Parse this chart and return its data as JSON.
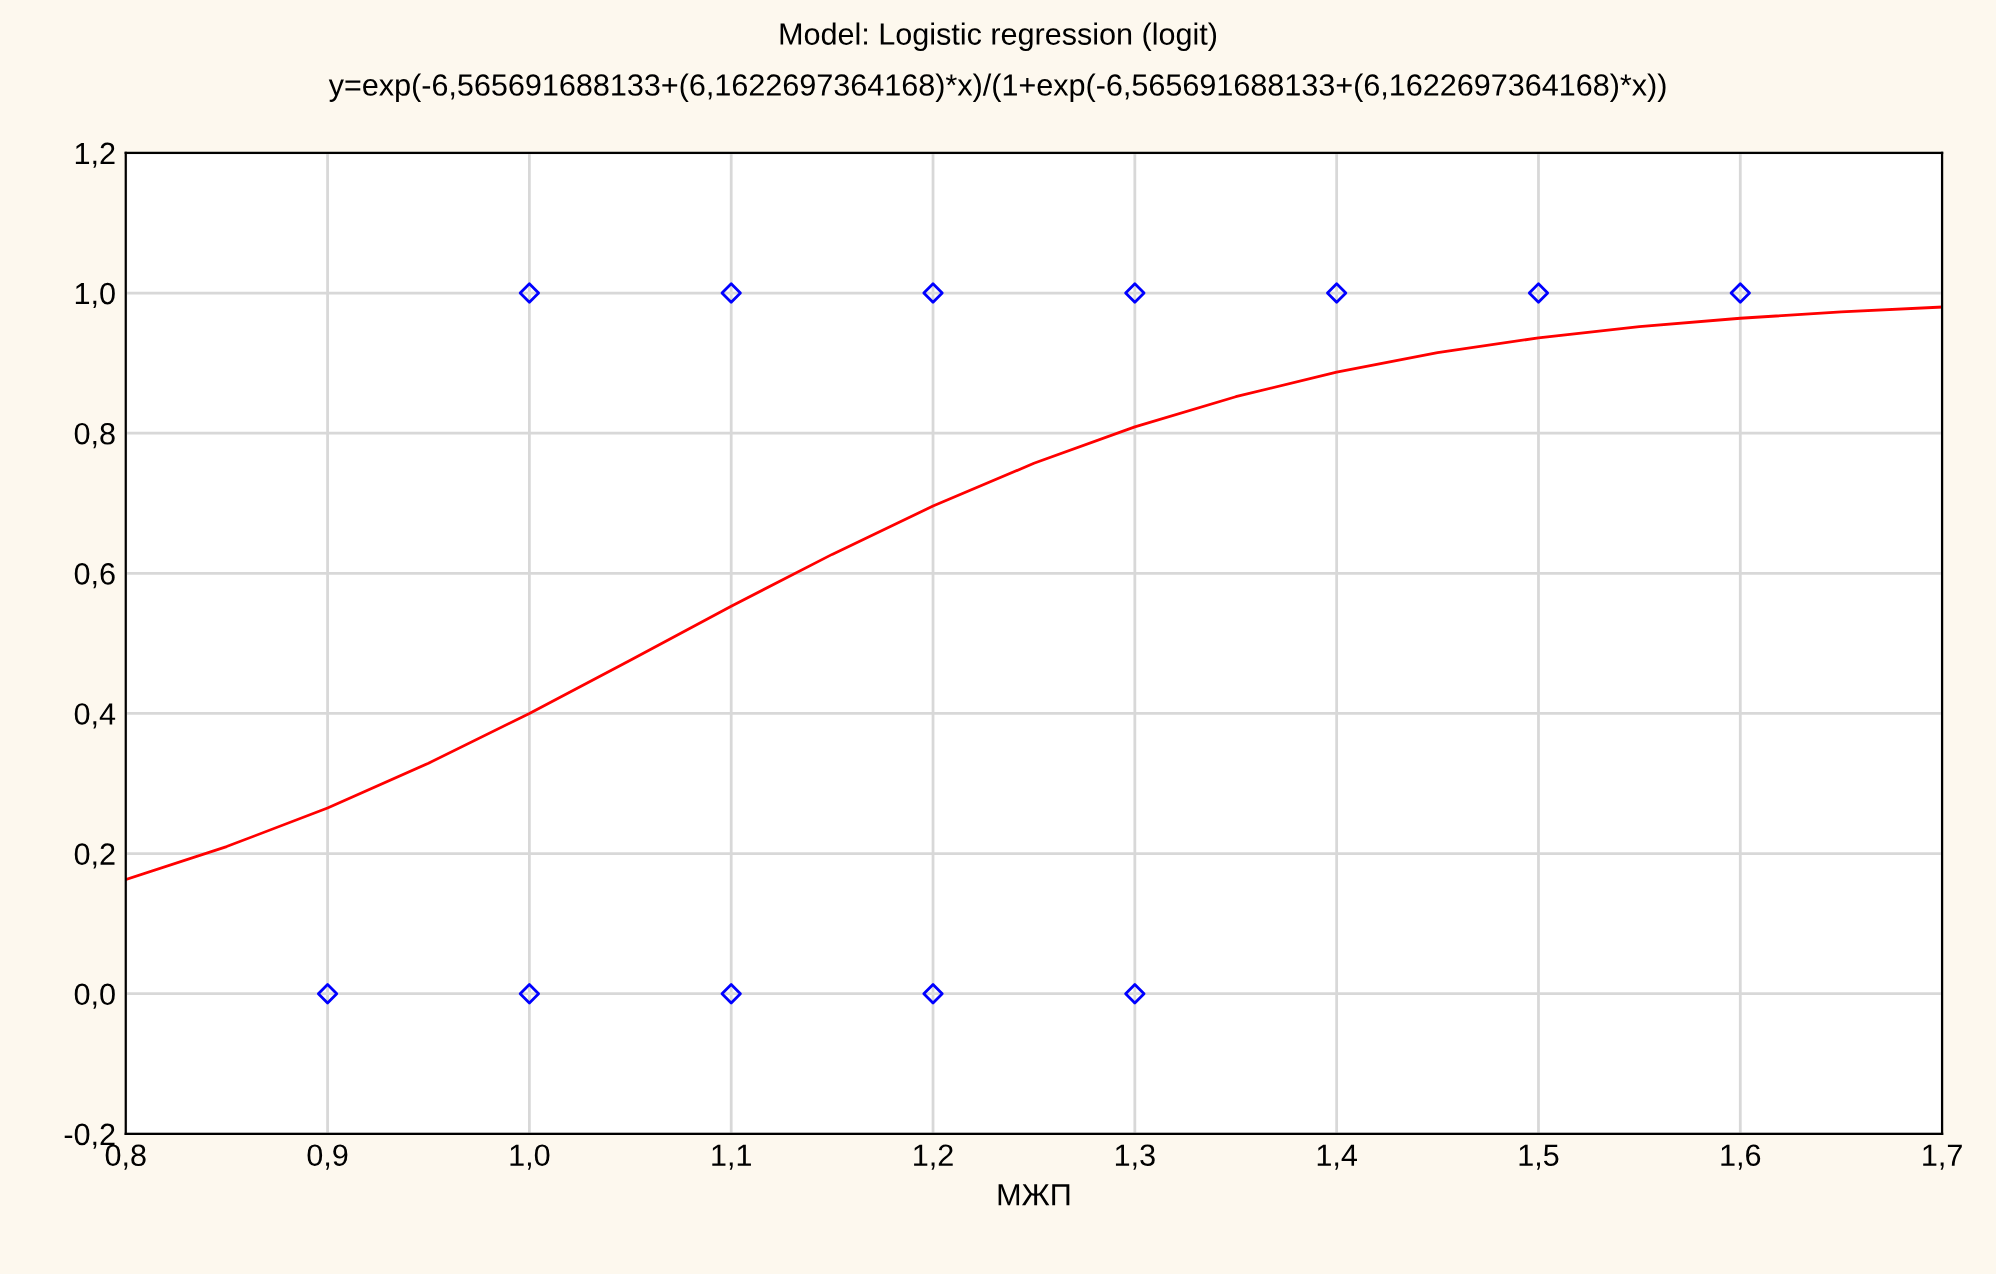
{
  "chart_data": {
    "type": "scatter",
    "title": "Model: Logistic regression (logit)",
    "subtitle": "y=exp(-6,565691688133+(6,1622697364168)*x)/(1+exp(-6,565691688133+(6,1622697364168)*x))",
    "xlabel": "МЖП",
    "series": [
      {
        "color": "#0000ff",
        "marker": "diamond",
        "x": [
          1.0,
          1.1,
          1.2,
          1.3,
          1.4,
          1.5,
          1.6,
          0.9,
          1.0,
          1.1,
          1.2,
          1.3
        ],
        "values": [
          1,
          1,
          1,
          1,
          1,
          1,
          1,
          0,
          0,
          0,
          0,
          0
        ]
      },
      {
        "type": "line",
        "color": "#ff0000",
        "marker": "none",
        "line_style": "solid",
        "x": [
          0.8,
          0.85,
          0.9,
          0.95,
          1.0,
          1.05,
          1.1,
          1.15,
          1.2,
          1.25,
          1.3,
          1.35,
          1.4,
          1.45,
          1.5,
          1.55,
          1.6,
          1.65,
          1.7
        ],
        "values": [
          0.163,
          0.21,
          0.265,
          0.329,
          0.4,
          0.476,
          0.553,
          0.627,
          0.696,
          0.757,
          0.809,
          0.852,
          0.887,
          0.915,
          0.936,
          0.952,
          0.964,
          0.973,
          0.98
        ]
      }
    ],
    "xlim": [
      0.8,
      1.7
    ],
    "xticks": [
      {
        "value": 0.8,
        "label": "0,8"
      },
      {
        "value": 0.9,
        "label": "0,9"
      },
      {
        "value": 1.0,
        "label": "1,0"
      },
      {
        "value": 1.1,
        "label": "1,1"
      },
      {
        "value": 1.2,
        "label": "1,2"
      },
      {
        "value": 1.3,
        "label": "1,3"
      },
      {
        "value": 1.4,
        "label": "1,4"
      },
      {
        "value": 1.5,
        "label": "1,5"
      },
      {
        "value": 1.6,
        "label": "1,6"
      },
      {
        "value": 1.7,
        "label": "1,7"
      }
    ],
    "ylim": [
      -0.2,
      1.2
    ],
    "yticks": [
      {
        "value": -0.2,
        "label": "-0,2"
      },
      {
        "value": 0.0,
        "label": "0,0"
      },
      {
        "value": 0.2,
        "label": "0,2"
      },
      {
        "value": 0.4,
        "label": "0,4"
      },
      {
        "value": 0.6,
        "label": "0,6"
      },
      {
        "value": 0.8,
        "label": "0,8"
      },
      {
        "value": 1.0,
        "label": "1,0"
      },
      {
        "value": 1.2,
        "label": "1,2"
      }
    ],
    "grid": true,
    "legend": false
  }
}
